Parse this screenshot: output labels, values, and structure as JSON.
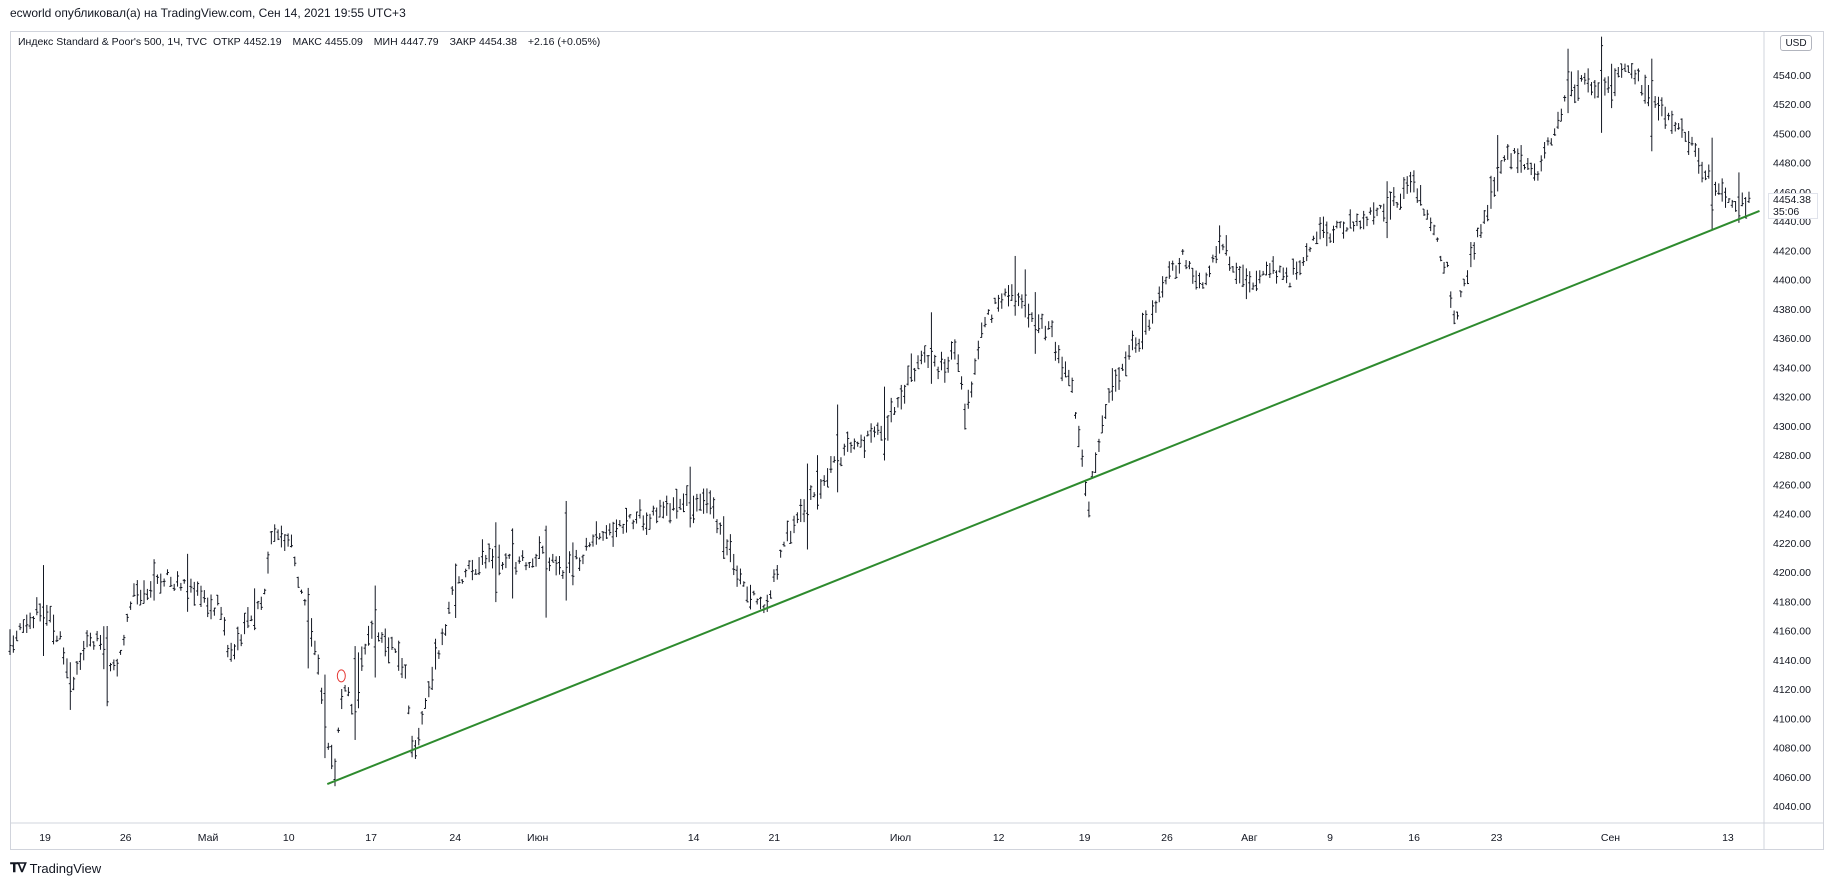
{
  "header": {
    "publisher_line": "ecworld опубликовал(а) на TradingView.com, Сен 14, 2021 19:55 UTC+3"
  },
  "legend": {
    "symbol": "Индекс Standard & Poor's 500, 1Ч, TVC",
    "open_label": "ОТКР",
    "open_value": "4452.19",
    "high_label": "МАКС",
    "high_value": "4455.09",
    "low_label": "МИН",
    "low_value": "4447.79",
    "close_label": "ЗАКР",
    "close_value": "4454.38",
    "change": "+2.16 (+0.05%)"
  },
  "currency_button": "USD",
  "last_price": {
    "value": "4454.38",
    "countdown": "35:06"
  },
  "footer": {
    "brand": "TradingView",
    "logo_icon": "tradingview-logo-icon"
  },
  "colors": {
    "bars": "#131722",
    "trendline": "#2e8b2e",
    "marker": "#e53935",
    "grid_border": "#d1d4dc"
  },
  "chart_data": {
    "type": "ohlc",
    "title": "Индекс Standard & Poor's 500, 1Ч, TVC",
    "ylim": [
      4030,
      4560
    ],
    "y_ticks": [
      4040,
      4060,
      4080,
      4100,
      4120,
      4140,
      4160,
      4180,
      4200,
      4220,
      4240,
      4260,
      4280,
      4300,
      4320,
      4340,
      4360,
      4380,
      4400,
      4420,
      4440,
      4460,
      4480,
      4500,
      4520,
      4540
    ],
    "y_tick_labels": [
      "4040.00",
      "4060.00",
      "4080.00",
      "4100.00",
      "4120.00",
      "4140.00",
      "4160.00",
      "4180.00",
      "4200.00",
      "4220.00",
      "4240.00",
      "4260.00",
      "4280.00",
      "4300.00",
      "4320.00",
      "4340.00",
      "4360.00",
      "4380.00",
      "4400.00",
      "4420.00",
      "4440.00",
      "4460.00",
      "4480.00",
      "4500.00",
      "4520.00",
      "4540.00"
    ],
    "x_ticks": [
      {
        "label": "19",
        "pos": 0.02
      },
      {
        "label": "26",
        "pos": 0.066
      },
      {
        "label": "Май",
        "pos": 0.113
      },
      {
        "label": "10",
        "pos": 0.159
      },
      {
        "label": "17",
        "pos": 0.206
      },
      {
        "label": "24",
        "pos": 0.254
      },
      {
        "label": "Июн",
        "pos": 0.301
      },
      {
        "label": "14",
        "pos": 0.39
      },
      {
        "label": "21",
        "pos": 0.436
      },
      {
        "label": "Июл",
        "pos": 0.508
      },
      {
        "label": "12",
        "pos": 0.564
      },
      {
        "label": "19",
        "pos": 0.613
      },
      {
        "label": "26",
        "pos": 0.66
      },
      {
        "label": "Авг",
        "pos": 0.707
      },
      {
        "label": "9",
        "pos": 0.753
      },
      {
        "label": "16",
        "pos": 0.801
      },
      {
        "label": "23",
        "pos": 0.848
      },
      {
        "label": "Сен",
        "pos": 0.913
      },
      {
        "label": "13",
        "pos": 0.98
      }
    ],
    "price_path": [
      [
        0.0,
        4150
      ],
      [
        0.02,
        4180
      ],
      [
        0.03,
        4150
      ],
      [
        0.035,
        4120
      ],
      [
        0.045,
        4160
      ],
      [
        0.06,
        4130
      ],
      [
        0.07,
        4185
      ],
      [
        0.09,
        4195
      ],
      [
        0.1,
        4190
      ],
      [
        0.12,
        4175
      ],
      [
        0.125,
        4140
      ],
      [
        0.135,
        4165
      ],
      [
        0.145,
        4185
      ],
      [
        0.15,
        4230
      ],
      [
        0.16,
        4225
      ],
      [
        0.165,
        4190
      ],
      [
        0.175,
        4145
      ],
      [
        0.18,
        4090
      ],
      [
        0.185,
        4060
      ],
      [
        0.19,
        4125
      ],
      [
        0.195,
        4105
      ],
      [
        0.205,
        4165
      ],
      [
        0.215,
        4150
      ],
      [
        0.225,
        4135
      ],
      [
        0.23,
        4070
      ],
      [
        0.235,
        4105
      ],
      [
        0.245,
        4150
      ],
      [
        0.255,
        4195
      ],
      [
        0.27,
        4210
      ],
      [
        0.29,
        4205
      ],
      [
        0.305,
        4215
      ],
      [
        0.315,
        4200
      ],
      [
        0.325,
        4210
      ],
      [
        0.335,
        4225
      ],
      [
        0.35,
        4235
      ],
      [
        0.37,
        4240
      ],
      [
        0.39,
        4248
      ],
      [
        0.4,
        4245
      ],
      [
        0.41,
        4215
      ],
      [
        0.42,
        4190
      ],
      [
        0.43,
        4172
      ],
      [
        0.44,
        4215
      ],
      [
        0.45,
        4240
      ],
      [
        0.465,
        4265
      ],
      [
        0.48,
        4285
      ],
      [
        0.5,
        4300
      ],
      [
        0.51,
        4325
      ],
      [
        0.52,
        4350
      ],
      [
        0.53,
        4340
      ],
      [
        0.54,
        4355
      ],
      [
        0.545,
        4305
      ],
      [
        0.555,
        4370
      ],
      [
        0.565,
        4385
      ],
      [
        0.575,
        4390
      ],
      [
        0.585,
        4375
      ],
      [
        0.595,
        4360
      ],
      [
        0.605,
        4330
      ],
      [
        0.61,
        4290
      ],
      [
        0.615,
        4245
      ],
      [
        0.62,
        4285
      ],
      [
        0.63,
        4330
      ],
      [
        0.64,
        4355
      ],
      [
        0.65,
        4370
      ],
      [
        0.66,
        4405
      ],
      [
        0.67,
        4415
      ],
      [
        0.68,
        4395
      ],
      [
        0.69,
        4425
      ],
      [
        0.7,
        4405
      ],
      [
        0.71,
        4395
      ],
      [
        0.72,
        4410
      ],
      [
        0.73,
        4400
      ],
      [
        0.745,
        4430
      ],
      [
        0.76,
        4435
      ],
      [
        0.78,
        4445
      ],
      [
        0.795,
        4460
      ],
      [
        0.8,
        4470
      ],
      [
        0.81,
        4440
      ],
      [
        0.815,
        4420
      ],
      [
        0.82,
        4405
      ],
      [
        0.825,
        4370
      ],
      [
        0.832,
        4410
      ],
      [
        0.84,
        4440
      ],
      [
        0.85,
        4480
      ],
      [
        0.86,
        4485
      ],
      [
        0.87,
        4470
      ],
      [
        0.88,
        4500
      ],
      [
        0.89,
        4530
      ],
      [
        0.9,
        4535
      ],
      [
        0.91,
        4530
      ],
      [
        0.92,
        4545
      ],
      [
        0.93,
        4535
      ],
      [
        0.94,
        4520
      ],
      [
        0.95,
        4505
      ],
      [
        0.96,
        4490
      ],
      [
        0.97,
        4470
      ],
      [
        0.98,
        4455
      ],
      [
        0.992,
        4452
      ]
    ],
    "trendline": {
      "from": [
        0.181,
        4055
      ],
      "to": [
        0.998,
        4447
      ]
    },
    "marker": {
      "x": 0.189,
      "y": 4129
    },
    "last_value": 4454.38,
    "grid": false,
    "legend_placement": "top-left"
  }
}
